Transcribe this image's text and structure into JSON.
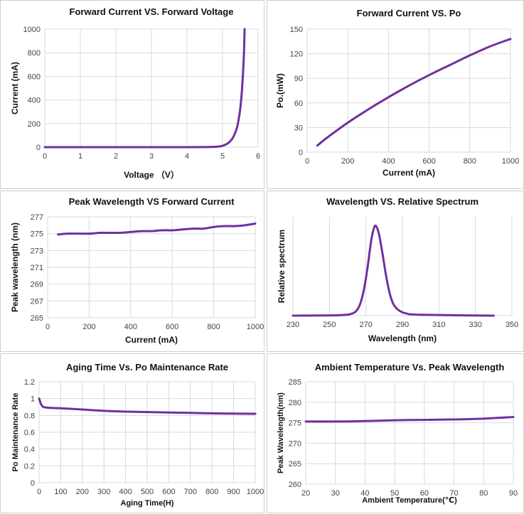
{
  "colors": {
    "series": "#7030a0",
    "grid": "#d9d9d9",
    "border": "#cfcfcf"
  },
  "chart_data": [
    {
      "type": "line",
      "title": "Forward Current VS. Forward Voltage",
      "xlabel": "Voltage （V）",
      "ylabel": "Current (mA)",
      "xlim": [
        0,
        6
      ],
      "ylim": [
        0,
        1000
      ],
      "xticks": [
        0,
        1,
        2,
        3,
        4,
        5,
        6
      ],
      "yticks": [
        0,
        200,
        400,
        600,
        800,
        1000
      ],
      "xtick_labels": [
        "0",
        "1",
        "2",
        "3",
        "4",
        "5",
        "6"
      ],
      "ytick_labels": [
        "0",
        "200",
        "400",
        "600",
        "800",
        "1000"
      ],
      "grid": true,
      "series": [
        {
          "x": [
            0,
            1,
            2,
            3,
            4,
            4.5,
            4.8,
            4.9,
            5.0,
            5.1,
            5.2,
            5.3,
            5.4,
            5.45,
            5.5,
            5.55,
            5.6,
            5.62
          ],
          "y": [
            0,
            0,
            0,
            0,
            0,
            1,
            3,
            6,
            12,
            24,
            45,
            85,
            160,
            230,
            330,
            500,
            780,
            1000
          ]
        }
      ]
    },
    {
      "type": "line",
      "title": "Forward Current VS. Po",
      "xlabel": "Current (mA)",
      "ylabel": "Po.(mW)",
      "xlim": [
        0,
        1000
      ],
      "ylim": [
        0,
        150
      ],
      "xticks": [
        0,
        200,
        400,
        600,
        800,
        1000
      ],
      "yticks": [
        0,
        30,
        60,
        90,
        120,
        150
      ],
      "xtick_labels": [
        "0",
        "200",
        "400",
        "600",
        "800",
        "1000"
      ],
      "ytick_labels": [
        "0",
        "30",
        "60",
        "90",
        "120",
        "150"
      ],
      "grid": true,
      "series": [
        {
          "x": [
            50,
            100,
            200,
            300,
            400,
            500,
            600,
            700,
            800,
            900,
            1000
          ],
          "y": [
            8,
            18,
            36,
            52,
            67,
            81,
            94,
            106,
            118,
            129,
            138
          ]
        }
      ]
    },
    {
      "type": "line",
      "title": "Peak Wavelength VS Forward Current",
      "xlabel": "Current (mA)",
      "ylabel": "Peak wavelength (nm)",
      "xlim": [
        0,
        1000
      ],
      "ylim": [
        265,
        277
      ],
      "xticks": [
        0,
        200,
        400,
        600,
        800,
        1000
      ],
      "yticks": [
        265,
        267,
        269,
        271,
        273,
        275,
        277
      ],
      "xtick_labels": [
        "0",
        "200",
        "400",
        "600",
        "800",
        "1000"
      ],
      "ytick_labels": [
        "265",
        "267",
        "269",
        "271",
        "273",
        "275",
        "277"
      ],
      "grid": true,
      "series": [
        {
          "x": [
            50,
            100,
            200,
            250,
            300,
            350,
            400,
            450,
            500,
            550,
            600,
            650,
            700,
            750,
            800,
            850,
            900,
            950,
            1000
          ],
          "y": [
            274.9,
            275.0,
            275.0,
            275.1,
            275.1,
            275.1,
            275.2,
            275.3,
            275.3,
            275.4,
            275.4,
            275.5,
            275.6,
            275.6,
            275.8,
            275.9,
            275.9,
            276.0,
            276.2
          ]
        }
      ]
    },
    {
      "type": "line",
      "title": "Wavelength VS. Relative Spectrum",
      "xlabel": "Wavelength (nm)",
      "ylabel": "Relative spectrum",
      "xlim": [
        230,
        350
      ],
      "ylim": [
        0,
        1.1
      ],
      "xticks": [
        230,
        250,
        270,
        290,
        310,
        330,
        350
      ],
      "yticks": [],
      "xtick_labels": [
        "230",
        "250",
        "270",
        "290",
        "310",
        "330",
        "350"
      ],
      "ytick_labels": [],
      "grid": true,
      "series": [
        {
          "x": [
            230,
            255,
            262,
            265,
            267,
            269,
            271,
            273,
            275,
            277,
            279,
            281,
            283,
            285,
            288,
            292,
            300,
            340
          ],
          "y": [
            0.0,
            0.005,
            0.02,
            0.06,
            0.14,
            0.3,
            0.55,
            0.85,
            1.0,
            0.92,
            0.7,
            0.45,
            0.25,
            0.13,
            0.06,
            0.025,
            0.01,
            0.0
          ]
        }
      ]
    },
    {
      "type": "line",
      "title": "Aging Time Vs. Po Maintenance Rate",
      "xlabel": "Aging Time(H)",
      "ylabel": "Po Maintenance Rate",
      "xlim": [
        0,
        1000
      ],
      "ylim": [
        0,
        1.2
      ],
      "xticks": [
        0,
        100,
        200,
        300,
        400,
        500,
        600,
        700,
        800,
        900,
        1000
      ],
      "yticks": [
        0,
        0.2,
        0.4,
        0.6,
        0.8,
        1.0,
        1.2
      ],
      "xtick_labels": [
        "0",
        "100",
        "200",
        "300",
        "400",
        "500",
        "600",
        "700",
        "800",
        "900",
        "1000"
      ],
      "ytick_labels": [
        "0",
        "0.2",
        "0.4",
        "0.6",
        "0.8",
        "1",
        "1.2"
      ],
      "grid": true,
      "series": [
        {
          "x": [
            0,
            10,
            20,
            50,
            100,
            200,
            300,
            400,
            500,
            600,
            700,
            800,
            900,
            1000
          ],
          "y": [
            1.0,
            0.93,
            0.9,
            0.89,
            0.885,
            0.87,
            0.855,
            0.845,
            0.84,
            0.835,
            0.83,
            0.825,
            0.822,
            0.82
          ]
        }
      ]
    },
    {
      "type": "line",
      "title": "Ambient Temperature Vs. Peak Wavelength",
      "xlabel": "Ambient Temperature(℃)",
      "ylabel": "Peak Wavelength(nm)",
      "xlim": [
        20,
        90
      ],
      "ylim": [
        260,
        285
      ],
      "xticks": [
        20,
        30,
        40,
        50,
        60,
        70,
        80,
        90
      ],
      "yticks": [
        260,
        265,
        270,
        275,
        280,
        285
      ],
      "xtick_labels": [
        "20",
        "30",
        "40",
        "50",
        "60",
        "70",
        "80",
        "90"
      ],
      "ytick_labels": [
        "260",
        "265",
        "270",
        "275",
        "280",
        "285"
      ],
      "grid": true,
      "series": [
        {
          "x": [
            20,
            30,
            40,
            50,
            60,
            70,
            80,
            90
          ],
          "y": [
            275.3,
            275.3,
            275.4,
            275.6,
            275.7,
            275.8,
            276.0,
            276.4
          ]
        }
      ]
    }
  ]
}
